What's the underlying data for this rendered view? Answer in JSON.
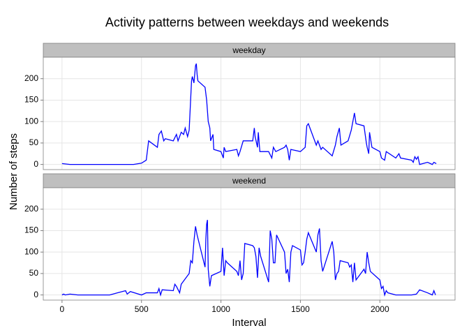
{
  "chart_data": {
    "type": "line",
    "title": "Activity patterns between weekdays and weekends",
    "xlabel": "Interval",
    "ylabel": "Number of steps",
    "xlim": [
      -118,
      2473
    ],
    "xticks": [
      0,
      500,
      1000,
      1500,
      2000
    ],
    "ylim": [
      -12,
      250
    ],
    "yticks": [
      0,
      50,
      100,
      150,
      200
    ],
    "grid": true,
    "series": [
      {
        "name": "weekday",
        "color": "#0000ff",
        "x": [
          0,
          50,
          100,
          200,
          300,
          400,
          450,
          500,
          530,
          545,
          600,
          610,
          625,
          640,
          650,
          700,
          720,
          730,
          750,
          765,
          775,
          790,
          800,
          815,
          820,
          830,
          840,
          845,
          850,
          855,
          900,
          910,
          920,
          930,
          935,
          950,
          955,
          1000,
          1015,
          1020,
          1030,
          1100,
          1110,
          1120,
          1140,
          1200,
          1210,
          1215,
          1230,
          1235,
          1245,
          1300,
          1320,
          1330,
          1345,
          1400,
          1410,
          1420,
          1430,
          1440,
          1500,
          1530,
          1540,
          1550,
          1600,
          1610,
          1620,
          1630,
          1640,
          1700,
          1720,
          1730,
          1745,
          1755,
          1800,
          1820,
          1840,
          1850,
          1900,
          1915,
          1920,
          1930,
          1935,
          1950,
          2000,
          2010,
          2030,
          2040,
          2100,
          2120,
          2130,
          2200,
          2210,
          2220,
          2230,
          2240,
          2250,
          2300,
          2330,
          2340,
          2355
        ],
        "values": [
          2,
          0,
          0,
          0,
          0,
          0,
          0,
          3,
          10,
          55,
          40,
          70,
          78,
          55,
          60,
          55,
          70,
          55,
          75,
          70,
          85,
          65,
          80,
          195,
          205,
          190,
          230,
          235,
          210,
          195,
          180,
          150,
          100,
          85,
          55,
          70,
          35,
          30,
          15,
          40,
          30,
          35,
          20,
          30,
          55,
          55,
          85,
          65,
          40,
          75,
          30,
          30,
          15,
          40,
          30,
          40,
          45,
          35,
          10,
          35,
          30,
          40,
          90,
          95,
          45,
          55,
          45,
          35,
          40,
          20,
          45,
          65,
          85,
          45,
          55,
          80,
          120,
          95,
          90,
          50,
          40,
          25,
          75,
          40,
          30,
          15,
          10,
          30,
          15,
          25,
          15,
          10,
          5,
          18,
          12,
          18,
          0,
          5,
          0,
          5,
          2
        ]
      },
      {
        "name": "weekend",
        "color": "#0000ff",
        "x": [
          0,
          10,
          20,
          50,
          100,
          300,
          350,
          400,
          410,
          430,
          500,
          530,
          600,
          610,
          620,
          630,
          700,
          710,
          720,
          740,
          750,
          800,
          810,
          820,
          830,
          840,
          850,
          900,
          905,
          910,
          915,
          920,
          930,
          940,
          1000,
          1010,
          1020,
          1030,
          1040,
          1100,
          1110,
          1120,
          1130,
          1140,
          1150,
          1200,
          1210,
          1220,
          1230,
          1240,
          1250,
          1300,
          1310,
          1320,
          1330,
          1340,
          1350,
          1400,
          1410,
          1420,
          1430,
          1440,
          1450,
          1500,
          1510,
          1520,
          1530,
          1540,
          1550,
          1600,
          1610,
          1620,
          1630,
          1640,
          1700,
          1710,
          1720,
          1730,
          1740,
          1750,
          1800,
          1810,
          1820,
          1830,
          1840,
          1850,
          1900,
          1910,
          1920,
          1930,
          1940,
          2000,
          2010,
          2020,
          2030,
          2040,
          2050,
          2100,
          2200,
          2230,
          2250,
          2300,
          2330,
          2340,
          2350
        ],
        "values": [
          0,
          2,
          0,
          2,
          0,
          0,
          5,
          10,
          2,
          8,
          0,
          5,
          5,
          15,
          0,
          12,
          10,
          25,
          20,
          5,
          25,
          50,
          80,
          75,
          125,
          160,
          140,
          65,
          130,
          165,
          175,
          60,
          20,
          45,
          55,
          110,
          45,
          80,
          75,
          55,
          45,
          80,
          35,
          50,
          120,
          115,
          110,
          90,
          40,
          110,
          90,
          30,
          150,
          130,
          75,
          75,
          140,
          100,
          50,
          60,
          30,
          100,
          115,
          105,
          70,
          75,
          100,
          130,
          145,
          100,
          140,
          155,
          80,
          55,
          125,
          100,
          35,
          50,
          55,
          80,
          75,
          65,
          70,
          30,
          75,
          35,
          60,
          50,
          100,
          75,
          55,
          35,
          15,
          20,
          0,
          10,
          5,
          0,
          0,
          2,
          12,
          5,
          0,
          10,
          0
        ]
      }
    ]
  }
}
